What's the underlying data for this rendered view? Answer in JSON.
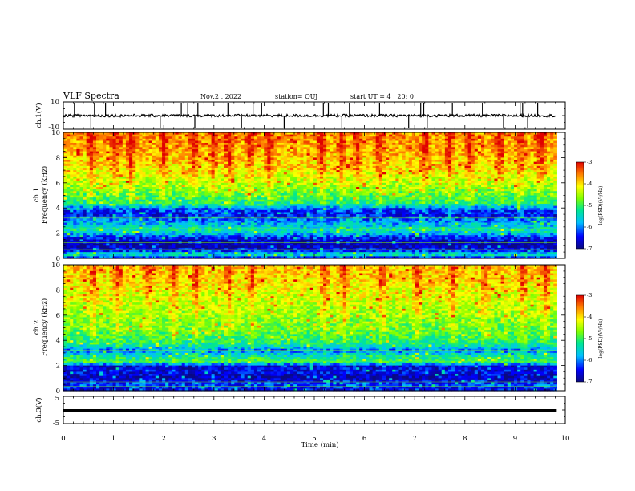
{
  "header": {
    "title": "VLF Spectra",
    "date": "Nov.2 , 2022",
    "station": "station= OUJ",
    "start": "start UT = 4 : 20: 0"
  },
  "chart_data": [
    {
      "type": "line",
      "panel": "ch1-waveform",
      "ylabel": "ch.1(V)",
      "ylim": [
        -10,
        10
      ],
      "y_ticks": [
        "10",
        "-10"
      ],
      "xlim": [
        0,
        10
      ],
      "baseline": 0,
      "noise_amplitude": 2,
      "spikes_min": [
        0.22,
        0.55,
        0.62,
        0.84,
        1.93,
        2.35,
        2.48,
        2.62,
        2.68,
        3.28,
        3.55,
        3.78,
        3.95,
        4.4,
        5.18,
        5.28,
        5.55,
        5.7,
        6.3,
        6.88,
        7.12,
        7.18,
        7.25,
        7.75,
        8.35,
        8.77,
        9.1,
        9.15,
        9.25,
        9.45
      ]
    },
    {
      "type": "heatmap",
      "panel": "ch1-spectrogram",
      "ylabel_line1": "ch.1",
      "ylabel_line2": "Frequency (kHz)",
      "ylim": [
        0,
        10
      ],
      "y_ticks": [
        "0",
        "2",
        "4",
        "6",
        "8",
        "10"
      ],
      "xlim": [
        0,
        9.83
      ],
      "colorbar_label": "log(PSD)(V²/Hz)",
      "colorbar_ticks": [
        "-3",
        "-4",
        "-5",
        "-6",
        "-7"
      ],
      "clim": [
        -7,
        -3
      ],
      "level_profile": [
        {
          "khz": 0.0,
          "level": -6.6
        },
        {
          "khz": 0.3,
          "level": -5.4
        },
        {
          "khz": 0.6,
          "level": -6.4
        },
        {
          "khz": 1.0,
          "level": -6.85
        },
        {
          "khz": 1.6,
          "level": -6.5
        },
        {
          "khz": 2.2,
          "level": -5.4
        },
        {
          "khz": 2.8,
          "level": -5.9
        },
        {
          "khz": 3.4,
          "level": -6.5
        },
        {
          "khz": 3.9,
          "level": -6.3
        },
        {
          "khz": 4.3,
          "level": -5.3
        },
        {
          "khz": 5.0,
          "level": -4.9
        },
        {
          "khz": 6.0,
          "level": -4.5
        },
        {
          "khz": 7.0,
          "level": -4.1
        },
        {
          "khz": 8.0,
          "level": -3.9
        },
        {
          "khz": 9.0,
          "level": -3.75
        },
        {
          "khz": 10.0,
          "level": -3.65
        }
      ],
      "bursts_min": [
        0.55,
        1.05,
        1.35,
        2.0,
        2.6,
        3.0,
        3.3,
        3.72,
        4.1,
        5.15,
        5.55,
        5.85,
        6.3,
        7.2,
        7.7,
        8.1,
        8.7,
        9.1,
        9.5
      ]
    },
    {
      "type": "heatmap",
      "panel": "ch2-spectrogram",
      "ylabel_line1": "ch.2",
      "ylabel_line2": "Frequency (kHz)",
      "ylim": [
        0,
        10
      ],
      "y_ticks": [
        "0",
        "2",
        "4",
        "6",
        "8",
        "10"
      ],
      "xlim": [
        0,
        9.83
      ],
      "colorbar_label": "log(PSD)(V²/Hz)",
      "colorbar_ticks": [
        "-3",
        "-4",
        "-5",
        "-6",
        "-7"
      ],
      "clim": [
        -7,
        -3
      ],
      "level_profile": [
        {
          "khz": 0.0,
          "level": -6.6
        },
        {
          "khz": 0.5,
          "level": -6.2
        },
        {
          "khz": 1.0,
          "level": -6.85
        },
        {
          "khz": 1.5,
          "level": -6.5
        },
        {
          "khz": 1.9,
          "level": -6.7
        },
        {
          "khz": 2.3,
          "level": -5.0
        },
        {
          "khz": 2.8,
          "level": -5.5
        },
        {
          "khz": 3.2,
          "level": -6.1
        },
        {
          "khz": 3.7,
          "level": -5.3
        },
        {
          "khz": 4.5,
          "level": -4.9
        },
        {
          "khz": 6.0,
          "level": -4.6
        },
        {
          "khz": 7.5,
          "level": -4.3
        },
        {
          "khz": 9.0,
          "level": -4.0
        },
        {
          "khz": 10.0,
          "level": -3.9
        }
      ],
      "bursts_min": [
        0.6,
        1.1,
        1.7,
        2.2,
        2.65,
        3.3,
        3.75,
        5.2,
        5.6,
        6.35,
        7.05,
        7.75,
        8.4,
        9.15,
        9.6
      ]
    },
    {
      "type": "line",
      "panel": "ch3-waveform",
      "ylabel": "ch.3(V)",
      "ylim": [
        -5,
        5
      ],
      "y_ticks": [
        "5",
        "-5"
      ],
      "xlim": [
        0,
        10
      ],
      "baseline": 0,
      "line_value": 0
    }
  ],
  "x_axis": {
    "label": "Time (min)",
    "ticks": [
      "0",
      "1",
      "2",
      "3",
      "4",
      "5",
      "6",
      "7",
      "8",
      "9",
      "10"
    ],
    "range": [
      0,
      10
    ]
  },
  "colormap": [
    "#0a0a80",
    "#0000ff",
    "#00bfff",
    "#00e890",
    "#7fff00",
    "#ffff00",
    "#ff8000",
    "#e00000"
  ]
}
